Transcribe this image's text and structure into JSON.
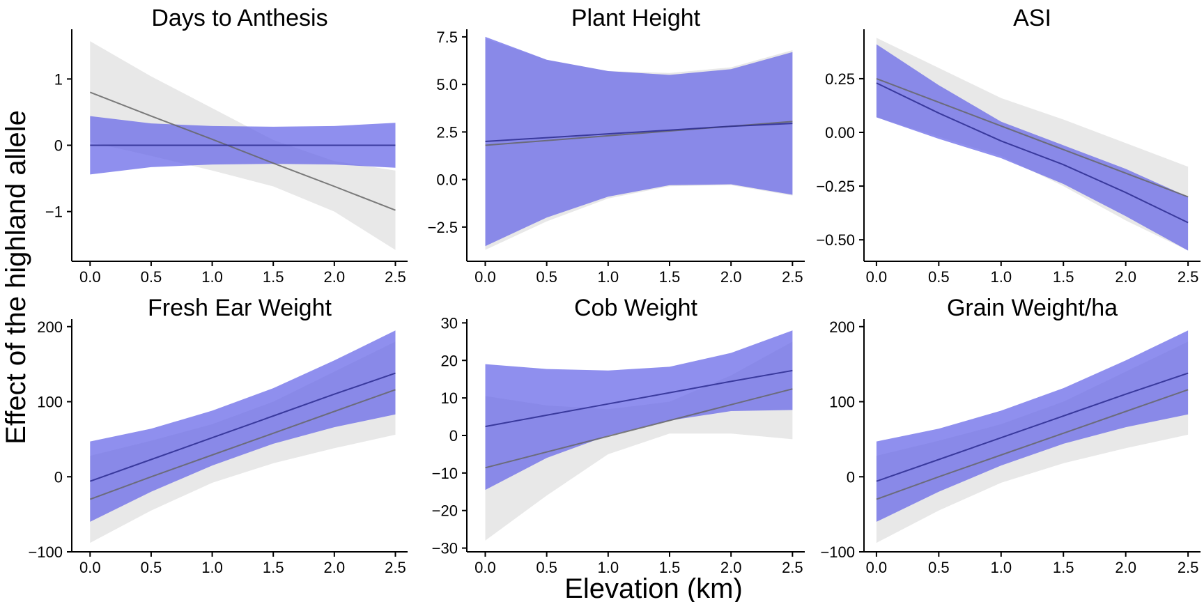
{
  "figure": {
    "ylabel": "Effect of the highland allele",
    "xlabel": "Elevation (km)"
  },
  "colors": {
    "ci_grey": "#d9d9d9",
    "ci_blue": "#6a6ae8",
    "line_grey": "#666666",
    "line_blue": "#2b2b8f"
  },
  "chart_data": [
    {
      "type": "line",
      "title": "Days to Anthesis",
      "xlim": [
        -0.15,
        2.6
      ],
      "ylim": [
        -1.75,
        1.75
      ],
      "xticks": [
        0.0,
        0.5,
        1.0,
        1.5,
        2.0,
        2.5
      ],
      "xtick_labels": [
        "0.0",
        "0.5",
        "1.0",
        "1.5",
        "2.0",
        "2.5"
      ],
      "yticks": [
        1,
        0,
        -1
      ],
      "ytick_labels": [
        "1",
        "0",
        "−1"
      ],
      "x": [
        0.0,
        0.5,
        1.0,
        1.5,
        2.0,
        2.5
      ],
      "series": [
        {
          "color": "grey",
          "values": [
            0.8,
            0.44,
            0.09,
            -0.27,
            -0.62,
            -0.98
          ],
          "lower": [
            0.05,
            -0.16,
            -0.38,
            -0.62,
            -1.0,
            -1.58
          ],
          "upper": [
            1.57,
            1.04,
            0.56,
            0.08,
            -0.24,
            -0.38
          ]
        },
        {
          "color": "blue",
          "values": [
            0.0,
            0.0,
            0.0,
            0.0,
            0.0,
            0.0
          ],
          "lower": [
            -0.44,
            -0.33,
            -0.29,
            -0.28,
            -0.29,
            -0.34
          ],
          "upper": [
            0.44,
            0.33,
            0.29,
            0.28,
            0.29,
            0.34
          ]
        }
      ]
    },
    {
      "type": "line",
      "title": "Plant Height",
      "xlim": [
        -0.15,
        2.6
      ],
      "ylim": [
        -4.3,
        7.9
      ],
      "xticks": [
        0.0,
        0.5,
        1.0,
        1.5,
        2.0,
        2.5
      ],
      "xtick_labels": [
        "0.0",
        "0.5",
        "1.0",
        "1.5",
        "2.0",
        "2.5"
      ],
      "yticks": [
        7.5,
        5.0,
        2.5,
        0.0,
        -2.5
      ],
      "ytick_labels": [
        "7.5",
        "5.0",
        "2.5",
        "0.0",
        "−2.5"
      ],
      "x": [
        0.0,
        0.5,
        1.0,
        1.5,
        2.0,
        2.5
      ],
      "series": [
        {
          "color": "grey",
          "values": [
            1.8,
            2.05,
            2.3,
            2.55,
            2.8,
            3.05
          ],
          "lower": [
            -3.7,
            -2.2,
            -1.0,
            -0.35,
            -0.3,
            -0.85
          ],
          "upper": [
            7.4,
            6.3,
            5.7,
            5.6,
            5.9,
            6.8
          ]
        },
        {
          "color": "blue",
          "values": [
            2.0,
            2.2,
            2.4,
            2.6,
            2.8,
            2.95
          ],
          "lower": [
            -3.5,
            -2.0,
            -0.9,
            -0.3,
            -0.25,
            -0.8
          ],
          "upper": [
            7.5,
            6.3,
            5.7,
            5.5,
            5.8,
            6.7
          ]
        }
      ]
    },
    {
      "type": "line",
      "title": "ASI",
      "xlim": [
        -0.1,
        2.6
      ],
      "ylim": [
        -0.6,
        0.48
      ],
      "xticks": [
        0.0,
        0.5,
        1.0,
        1.5,
        2.0,
        2.5
      ],
      "xtick_labels": [
        "0.0",
        "0.5",
        "1.0",
        "1.5",
        "2.0",
        "2.5"
      ],
      "yticks": [
        0.25,
        0.0,
        -0.25,
        -0.5
      ],
      "ytick_labels": [
        "0.25",
        "0.00",
        "−0.25",
        "−0.50"
      ],
      "x": [
        0.0,
        0.5,
        1.0,
        1.5,
        2.0,
        2.5
      ],
      "series": [
        {
          "color": "grey",
          "values": [
            0.25,
            0.14,
            0.03,
            -0.08,
            -0.19,
            -0.3
          ],
          "lower": [
            0.07,
            -0.02,
            -0.11,
            -0.25,
            -0.41,
            -0.55
          ],
          "upper": [
            0.44,
            0.3,
            0.16,
            0.06,
            -0.05,
            -0.16
          ]
        },
        {
          "color": "blue",
          "values": [
            0.23,
            0.09,
            -0.04,
            -0.15,
            -0.28,
            -0.42
          ],
          "lower": [
            0.07,
            -0.03,
            -0.12,
            -0.24,
            -0.39,
            -0.55
          ],
          "upper": [
            0.41,
            0.22,
            0.05,
            -0.06,
            -0.17,
            -0.3
          ]
        }
      ]
    },
    {
      "type": "line",
      "title": "Fresh Ear Weight",
      "xlim": [
        -0.15,
        2.6
      ],
      "ylim": [
        -100,
        210
      ],
      "xticks": [
        0.0,
        0.5,
        1.0,
        1.5,
        2.0,
        2.5
      ],
      "xtick_labels": [
        "0.0",
        "0.5",
        "1.0",
        "1.5",
        "2.0",
        "2.5"
      ],
      "yticks": [
        200,
        100,
        0,
        -100
      ],
      "ytick_labels": [
        "200",
        "100",
        "0",
        "−100"
      ],
      "x": [
        0.0,
        0.5,
        1.0,
        1.5,
        2.0,
        2.5
      ],
      "series": [
        {
          "color": "grey",
          "values": [
            -30,
            0,
            29,
            58,
            87,
            116
          ],
          "lower": [
            -88,
            -45,
            -8,
            18,
            38,
            56
          ],
          "upper": [
            28,
            48,
            70,
            100,
            140,
            180
          ]
        },
        {
          "color": "blue",
          "values": [
            -6,
            23,
            52,
            81,
            110,
            138
          ],
          "lower": [
            -60,
            -20,
            15,
            44,
            66,
            83
          ],
          "upper": [
            47,
            64,
            88,
            118,
            155,
            195
          ]
        }
      ]
    },
    {
      "type": "line",
      "title": "Cob Weight",
      "xlim": [
        -0.15,
        2.6
      ],
      "ylim": [
        -31,
        31
      ],
      "xticks": [
        0.0,
        0.5,
        1.0,
        1.5,
        2.0,
        2.5
      ],
      "xtick_labels": [
        "0.0",
        "0.5",
        "1.0",
        "1.5",
        "2.0",
        "2.5"
      ],
      "yticks": [
        30,
        20,
        10,
        0,
        -10,
        -20,
        -30
      ],
      "ytick_labels": [
        "30",
        "20",
        "10",
        "0",
        "−10",
        "−20",
        "−30"
      ],
      "x": [
        0.0,
        0.5,
        1.0,
        1.5,
        2.0,
        2.5
      ],
      "series": [
        {
          "color": "grey",
          "values": [
            -8.6,
            -4.4,
            -0.2,
            4.0,
            8.2,
            12.4
          ],
          "lower": [
            -28,
            -16,
            -5,
            0.5,
            0.5,
            -1
          ],
          "upper": [
            10.5,
            8,
            7,
            9,
            16,
            25
          ]
        },
        {
          "color": "blue",
          "values": [
            2.4,
            5.4,
            8.4,
            11.4,
            14.4,
            17.3
          ],
          "lower": [
            -14.5,
            -6,
            0,
            4,
            6.5,
            6.8
          ],
          "upper": [
            19,
            17.7,
            17.3,
            18.3,
            22,
            28
          ]
        }
      ]
    },
    {
      "type": "line",
      "title": "Grain Weight/ha",
      "xlim": [
        -0.1,
        2.6
      ],
      "ylim": [
        -100,
        210
      ],
      "xticks": [
        0.0,
        0.5,
        1.0,
        1.5,
        2.0,
        2.5
      ],
      "xtick_labels": [
        "0.0",
        "0.5",
        "1.0",
        "1.5",
        "2.0",
        "2.5"
      ],
      "yticks": [
        200,
        100,
        0,
        -100
      ],
      "ytick_labels": [
        "200",
        "100",
        "0",
        "−100"
      ],
      "x": [
        0.0,
        0.5,
        1.0,
        1.5,
        2.0,
        2.5
      ],
      "series": [
        {
          "color": "grey",
          "values": [
            -30,
            0,
            29,
            58,
            87,
            116
          ],
          "lower": [
            -88,
            -45,
            -8,
            18,
            38,
            56
          ],
          "upper": [
            28,
            48,
            70,
            100,
            140,
            180
          ]
        },
        {
          "color": "blue",
          "values": [
            -6,
            23,
            52,
            81,
            110,
            138
          ],
          "lower": [
            -60,
            -20,
            15,
            44,
            66,
            83
          ],
          "upper": [
            47,
            64,
            88,
            118,
            155,
            195
          ]
        }
      ]
    }
  ]
}
